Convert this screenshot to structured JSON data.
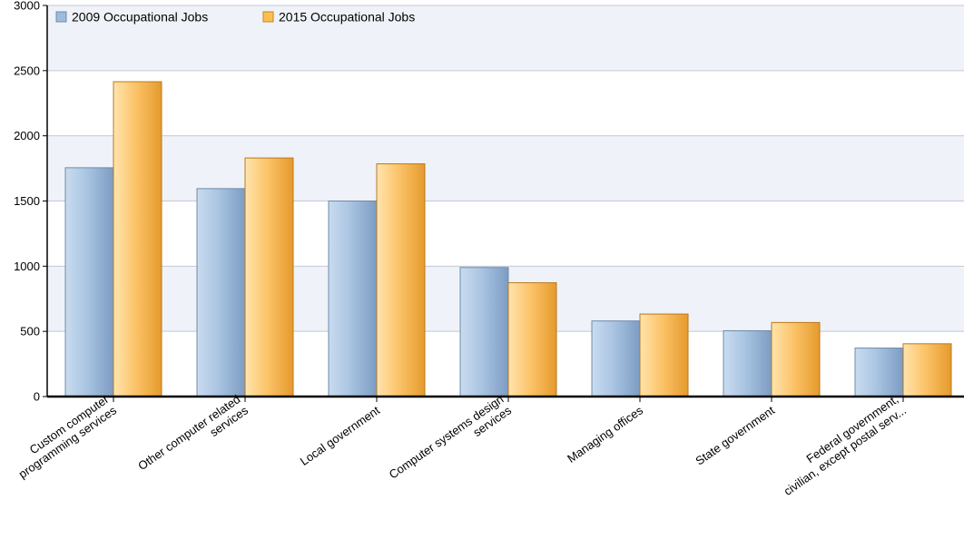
{
  "chart_data": {
    "type": "bar",
    "title": "",
    "xlabel": "",
    "ylabel": "",
    "ylim": [
      0,
      3000
    ],
    "yticks": [
      0,
      500,
      1000,
      1500,
      2000,
      2500,
      3000
    ],
    "grid": true,
    "legend_position": "top-left",
    "categories": [
      [
        "Custom computer",
        "programming services"
      ],
      [
        "Other computer related",
        "services"
      ],
      [
        "Local government"
      ],
      [
        "Computer systems design",
        "services"
      ],
      [
        "Managing offices"
      ],
      [
        "State government"
      ],
      [
        "Federal government,",
        "civilian, except postal serv..."
      ]
    ],
    "series": [
      {
        "name": "2009 Occupational Jobs",
        "color": "#8fb1d6",
        "values": [
          1755,
          1595,
          1500,
          990,
          580,
          505,
          372
        ]
      },
      {
        "name": "2015 Occupational Jobs",
        "color": "#f8b84a",
        "values": [
          2415,
          1830,
          1785,
          873,
          633,
          568,
          405
        ]
      }
    ]
  }
}
